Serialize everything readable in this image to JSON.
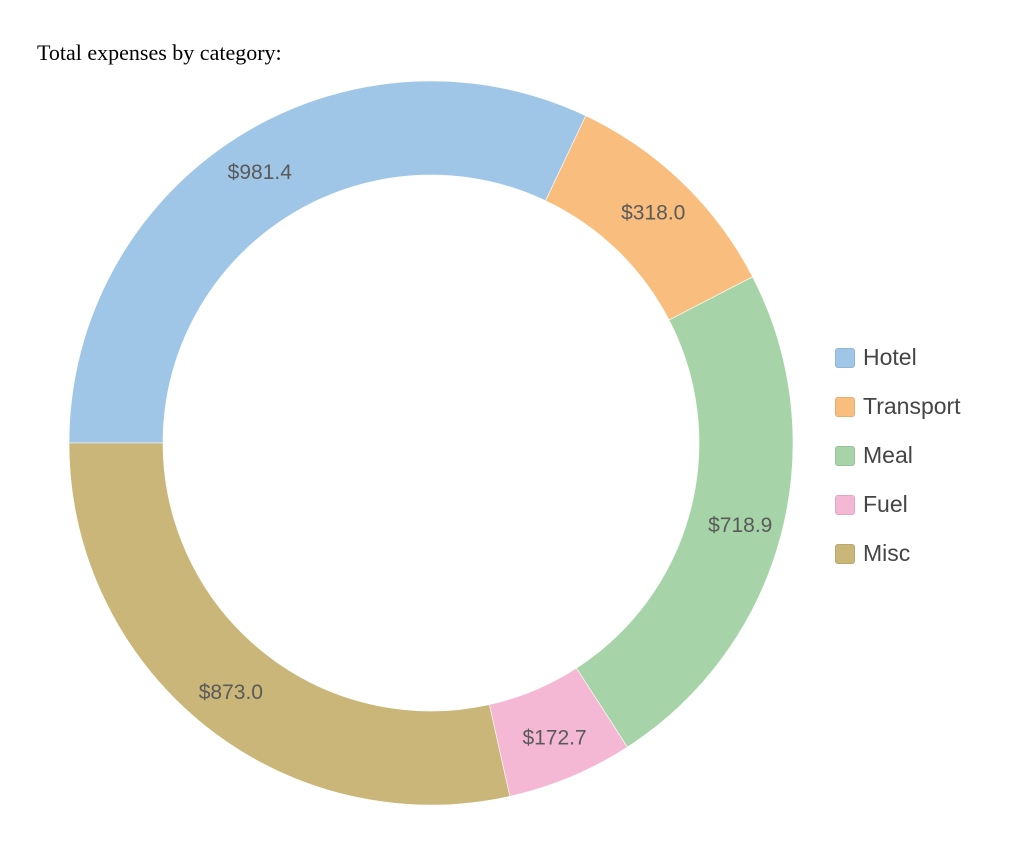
{
  "heading": "Total expenses by category:",
  "chart_data": {
    "type": "pie",
    "donut": true,
    "title": "Total expenses by category:",
    "categories": [
      "Hotel",
      "Transport",
      "Meal",
      "Fuel",
      "Misc"
    ],
    "values": [
      981.4,
      318.0,
      718.9,
      172.7,
      873.0
    ],
    "labels": [
      "$981.4",
      "$318.0",
      "$718.9",
      "$172.7",
      "$873.0"
    ],
    "colors": [
      "#9fc6e7",
      "#f9be7e",
      "#a6d4a8",
      "#f4b8d4",
      "#c9b678"
    ],
    "start": "9 o'clock",
    "direction": "clockwise",
    "legend_position": "right"
  },
  "legend": {
    "items": [
      {
        "label": "Hotel",
        "color": "#9fc6e7"
      },
      {
        "label": "Transport",
        "color": "#f9be7e"
      },
      {
        "label": "Meal",
        "color": "#a6d4a8"
      },
      {
        "label": "Fuel",
        "color": "#f4b8d4"
      },
      {
        "label": "Misc",
        "color": "#c9b678"
      }
    ]
  }
}
